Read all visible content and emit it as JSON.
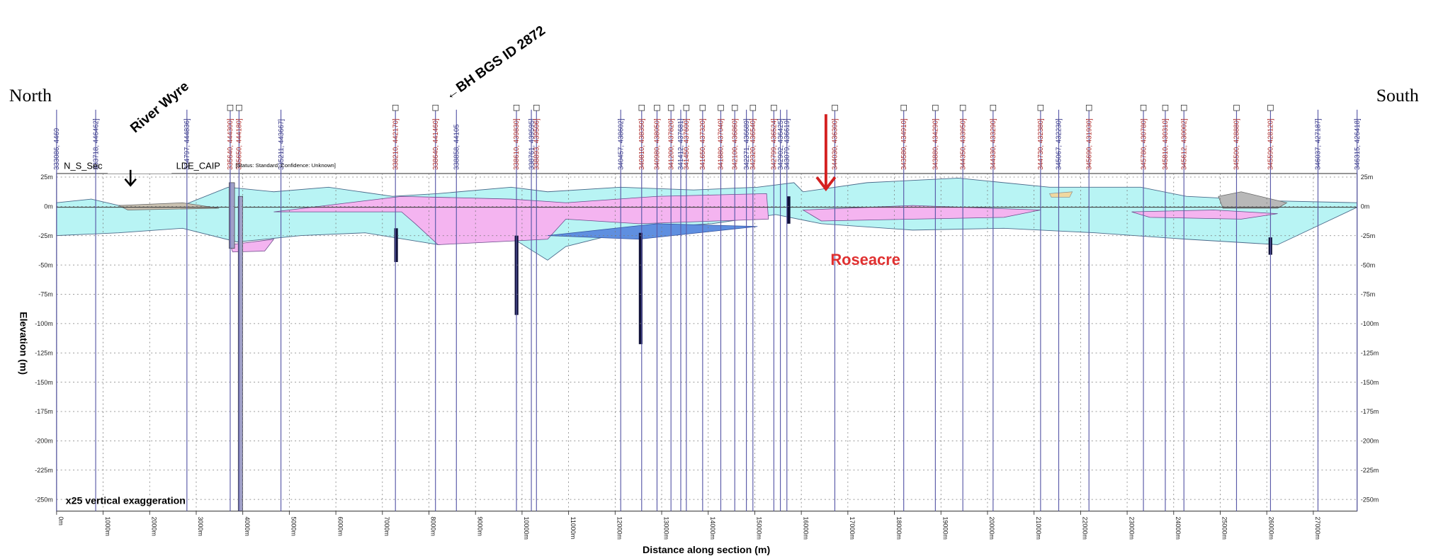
{
  "chart_data": {
    "type": "section",
    "north": "North",
    "south": "South",
    "river": "River Wyre",
    "borehole_note": "←BH BGS ID 2872",
    "place": "Roseacre",
    "section_name": "N_S_Sec",
    "model_name": "LDE_CAIP",
    "status": "[Status: Standard, Confidence: Unknown]",
    "exaggeration": "x25 vertical exaggeration",
    "ylabel": "Elevation (m)",
    "xlabel": "Distance along section (m)",
    "xlim": [
      0,
      27940
    ],
    "ylim": [
      -260,
      28
    ],
    "grid": true,
    "xticks": [
      {
        "value": 0,
        "label": "0m"
      },
      {
        "value": 1000,
        "label": "1000m"
      },
      {
        "value": 2000,
        "label": "2000m"
      },
      {
        "value": 3000,
        "label": "3000m"
      },
      {
        "value": 4000,
        "label": "4000m"
      },
      {
        "value": 5000,
        "label": "5000m"
      },
      {
        "value": 6000,
        "label": "6000m"
      },
      {
        "value": 7000,
        "label": "7000m"
      },
      {
        "value": 8000,
        "label": "8000m"
      },
      {
        "value": 9000,
        "label": "9000m"
      },
      {
        "value": 10000,
        "label": "10000m"
      },
      {
        "value": 11000,
        "label": "11000m"
      },
      {
        "value": 12000,
        "label": "12000m"
      },
      {
        "value": 13000,
        "label": "13000m"
      },
      {
        "value": 14000,
        "label": "14000m"
      },
      {
        "value": 15000,
        "label": "15000m"
      },
      {
        "value": 16000,
        "label": "16000m"
      },
      {
        "value": 17000,
        "label": "17000m"
      },
      {
        "value": 18000,
        "label": "18000m"
      },
      {
        "value": 19000,
        "label": "19000m"
      },
      {
        "value": 20000,
        "label": "20000m"
      },
      {
        "value": 21000,
        "label": "21000m"
      },
      {
        "value": 22000,
        "label": "22000m"
      },
      {
        "value": 23000,
        "label": "23000m"
      },
      {
        "value": 24000,
        "label": "24000m"
      },
      {
        "value": 25000,
        "label": "25000m"
      },
      {
        "value": 26000,
        "label": "26000m"
      },
      {
        "value": 27000,
        "label": "27000m"
      }
    ],
    "yticks": [
      {
        "value": 25,
        "label": "25m"
      },
      {
        "value": 0,
        "label": "0m"
      },
      {
        "value": -25,
        "label": "-25m"
      },
      {
        "value": -50,
        "label": "-50m"
      },
      {
        "value": -75,
        "label": "-75m"
      },
      {
        "value": -100,
        "label": "-100m"
      },
      {
        "value": -125,
        "label": "-125m"
      },
      {
        "value": -150,
        "label": "-150m"
      },
      {
        "value": -175,
        "label": "-175m"
      },
      {
        "value": -200,
        "label": "-200m"
      },
      {
        "value": -225,
        "label": "-225m"
      },
      {
        "value": -250,
        "label": "-250m"
      }
    ],
    "boreholes": [
      {
        "label": "333086, 4469",
        "color": "#3a3a8a",
        "x": 0
      },
      {
        "label": "333718, 446462]",
        "color": "#3a3a8a",
        "x": 840
      },
      {
        "label": "334797, 444836]",
        "color": "#3a3a8a",
        "x": 2800
      },
      {
        "label": "335640, 444300]",
        "color": "#b03030",
        "x": 3730
      },
      {
        "label": "335650, 444180]",
        "color": "#b03030",
        "x": 3920
      },
      {
        "label": "335211, 443667]",
        "color": "#3a3a8a",
        "x": 4820
      },
      {
        "label": "338210, 442170]",
        "color": "#b03030",
        "x": 7280
      },
      {
        "label": "338640, 441460]",
        "color": "#b03030",
        "x": 8140
      },
      {
        "label": "338858, 44105",
        "color": "#3a3a8a",
        "x": 8590
      },
      {
        "label": "338610, 439830]",
        "color": "#b03030",
        "x": 9880
      },
      {
        "label": "338761, 439595]",
        "color": "#3a3a8a",
        "x": 10200
      },
      {
        "label": "338893, 439506]",
        "color": "#b03030",
        "x": 10310
      },
      {
        "label": "340457, 438602]",
        "color": "#3a3a8a",
        "x": 12120
      },
      {
        "label": "340810, 438350]",
        "color": "#b03030",
        "x": 12570
      },
      {
        "label": "340980, 438050]",
        "color": "#b03030",
        "x": 12900
      },
      {
        "label": "341200, 437820]",
        "color": "#b03030",
        "x": 13200
      },
      {
        "label": "341412, 437681]",
        "color": "#3a3a8a",
        "x": 13410
      },
      {
        "label": "341450, 437600]",
        "color": "#b03030",
        "x": 13530
      },
      {
        "label": "341650, 437320]",
        "color": "#b03030",
        "x": 13880
      },
      {
        "label": "341880, 437040]",
        "color": "#b03030",
        "x": 14270
      },
      {
        "label": "342100, 436860]",
        "color": "#b03030",
        "x": 14570
      },
      {
        "label": "342271, 436689]",
        "color": "#3a3a8a",
        "x": 14820
      },
      {
        "label": "342320, 436540]",
        "color": "#b03030",
        "x": 14960
      },
      {
        "label": "342799, 436524]",
        "color": "#b03030",
        "x": 15410
      },
      {
        "label": "342902, 436425]",
        "color": "#3a3a8a",
        "x": 15550
      },
      {
        "label": "343079, 436619]",
        "color": "#3a3a8a",
        "x": 15690
      },
      {
        "label": "344030, 436300]",
        "color": "#b03030",
        "x": 16720
      },
      {
        "label": "343580, 434910]",
        "color": "#b03030",
        "x": 18200
      },
      {
        "label": "343880, 434290]",
        "color": "#b03030",
        "x": 18880
      },
      {
        "label": "344350, 433950]",
        "color": "#b03030",
        "x": 19470
      },
      {
        "label": "344330, 433290]",
        "color": "#b03030",
        "x": 20120
      },
      {
        "label": "344730, 432380]",
        "color": "#b03030",
        "x": 21140
      },
      {
        "label": "345067, 432230]",
        "color": "#3a3a8a",
        "x": 21530
      },
      {
        "label": "345690, 431930]",
        "color": "#b03030",
        "x": 22180
      },
      {
        "label": "345780, 430780]",
        "color": "#b03030",
        "x": 23350
      },
      {
        "label": "345810, 430310]",
        "color": "#b03030",
        "x": 23820
      },
      {
        "label": "345612, 430002]",
        "color": "#b03030",
        "x": 24220
      },
      {
        "label": "345500, 428880]",
        "color": "#b03030",
        "x": 25350
      },
      {
        "label": "345590, 428120]",
        "color": "#b03030",
        "x": 26080
      },
      {
        "label": "346037, 427187]",
        "color": "#3a3a8a",
        "x": 27100
      },
      {
        "label": "346315, 426418]",
        "color": "#3a3a8a",
        "x": 27940
      }
    ]
  }
}
